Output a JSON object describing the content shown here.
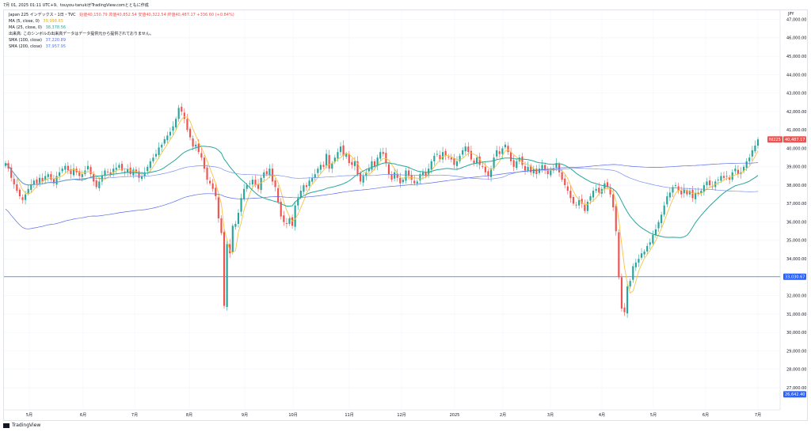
{
  "header": {
    "text": "7月 01, 2025 01:11 UTC+9、touyou-tanukiがTradingView.comとともに作成"
  },
  "legend": {
    "title": "Japan 225 インデックス・1日・TVC",
    "ohlc": "始値40,150.79  高値40,852.54  安値40,322.54  終値40,487.17 +336.60 (+0.84%)",
    "items": [
      {
        "label": "MA (5, close, 0)",
        "value": "39,998.65",
        "color": "#f6c343"
      },
      {
        "label": "MA (25, close, 0)",
        "value": "38,378.56",
        "color": "#26a69a"
      },
      {
        "label": "出来高: このシンボルの出来高データはデータ提供元から提供されておりません。",
        "value": "",
        "color": "#131722"
      },
      {
        "label": "SMA (100, close)",
        "value": "37,220.89",
        "color": "#5b6be8"
      },
      {
        "label": "SMA (200, close)",
        "value": "37,957.95",
        "color": "#4b7be0"
      }
    ]
  },
  "currency": "JPY",
  "footer": {
    "brand": "TradingView"
  },
  "colors": {
    "up": "#26a69a",
    "down": "#ef5350",
    "ma5": "#f6c343",
    "ma25": "#26a69a",
    "sma100": "#7b8ff2",
    "sma200": "#5b6be8",
    "hline": "#4a78d6"
  },
  "chart_data": {
    "type": "candlestick",
    "ylim": [
      25800,
      47500
    ],
    "y_ticks": [
      47000,
      46000,
      45000,
      44000,
      43000,
      42000,
      41000,
      40000,
      39000,
      38000,
      37000,
      36000,
      35000,
      34000,
      33000,
      32000,
      31000,
      30000,
      29000,
      28000,
      27000
    ],
    "y_tick_labels": [
      "47,000.00",
      "46,000.00",
      "45,000.00",
      "44,000.00",
      "43,000.00",
      "42,000.00",
      "41,000.00",
      "40,000.00",
      "39,000.00",
      "38,000.00",
      "37,000.00",
      "36,000.00",
      "35,000.00",
      "34,000.00",
      "33,000.00",
      "32,000.00",
      "31,000.00",
      "30,000.00",
      "29,000.00",
      "28,000.00",
      "27,000.00"
    ],
    "x_ticks": [
      "5月",
      "6月",
      "7月",
      "8月",
      "9月",
      "10月",
      "11月",
      "12月",
      "2025",
      "2月",
      "3月",
      "4月",
      "5月",
      "6月",
      "7月"
    ],
    "price_tags": [
      {
        "label": "NI225",
        "value": "40,487.17",
        "price": 40487,
        "color": "#ef5350"
      },
      {
        "label": "",
        "value": "33,030.67",
        "price": 33030,
        "color": "#2962ff"
      },
      {
        "label": "",
        "value": "26,642.40",
        "price": 26642,
        "color": "#2962ff"
      }
    ],
    "horizontal_line": 33030,
    "closes": [
      39200,
      38900,
      38400,
      38050,
      37700,
      37400,
      37200,
      37500,
      37800,
      38050,
      38250,
      38100,
      38400,
      38200,
      38500,
      38600,
      38300,
      38100,
      38500,
      38700,
      38900,
      39050,
      38800,
      38600,
      38900,
      38700,
      38500,
      38600,
      38800,
      39050,
      38600,
      38200,
      37900,
      38200,
      38500,
      38800,
      38700,
      38600,
      38900,
      38950,
      39100,
      38800,
      38700,
      38900,
      38600,
      38850,
      38700,
      38400,
      38500,
      38700,
      39000,
      39300,
      39500,
      39700,
      40050,
      40200,
      40500,
      40700,
      40900,
      41200,
      41600,
      42200,
      42000,
      41600,
      41000,
      40600,
      40100,
      40200,
      39800,
      39500,
      38900,
      38300,
      38100,
      37800,
      37400,
      36200,
      35400,
      31450,
      34800,
      34300,
      35800,
      35900,
      36500,
      37300,
      37800,
      38000,
      38100,
      38300,
      38000,
      37800,
      38400,
      38700,
      38600,
      38900,
      38200,
      37900,
      37100,
      36300,
      36000,
      35900,
      36200,
      35800,
      36900,
      37300,
      37700,
      38000,
      37900,
      38250,
      38400,
      38600,
      38900,
      39100,
      39000,
      39700,
      38900,
      39200,
      39500,
      39800,
      40100,
      39600,
      39700,
      39200,
      39100,
      39300,
      38600,
      38200,
      38500,
      38700,
      38900,
      39300,
      39000,
      39500,
      39800,
      39700,
      39200,
      38600,
      38300,
      38700,
      38400,
      38100,
      38300,
      38800,
      38500,
      38300,
      38100,
      38200,
      38600,
      38700,
      38500,
      38900,
      39300,
      39600,
      39700,
      39400,
      39800,
      39600,
      39500,
      39400,
      39100,
      39300,
      39600,
      39900,
      40100,
      39800,
      39400,
      39200,
      39500,
      39100,
      39000,
      38700,
      38500,
      38900,
      39500,
      39900,
      39700,
      40000,
      40200,
      39800,
      39300,
      39000,
      39300,
      39500,
      39100,
      38800,
      39000,
      38700,
      38900,
      38600,
      38900,
      39100,
      38800,
      38600,
      38800,
      38900,
      39200,
      38700,
      38300,
      38000,
      37700,
      37300,
      37000,
      36900,
      37200,
      37000,
      36600,
      37100,
      37400,
      37700,
      37800,
      37600,
      37800,
      38100,
      37900,
      37500,
      36800,
      35500,
      33000,
      31300,
      31100,
      32500,
      32800,
      33600,
      33800,
      34000,
      34300,
      34400,
      34700,
      34900,
      35300,
      35600,
      36000,
      36400,
      36900,
      37400,
      37600,
      37900,
      38000,
      37700,
      37500,
      37800,
      37500,
      37700,
      37300,
      37600,
      37500,
      37700,
      38000,
      38200,
      38000,
      37900,
      38200,
      38300,
      38500,
      38400,
      38500,
      38300,
      38700,
      38900,
      38600,
      38700,
      39000,
      39300,
      39500,
      39900,
      40150,
      40487
    ]
  }
}
